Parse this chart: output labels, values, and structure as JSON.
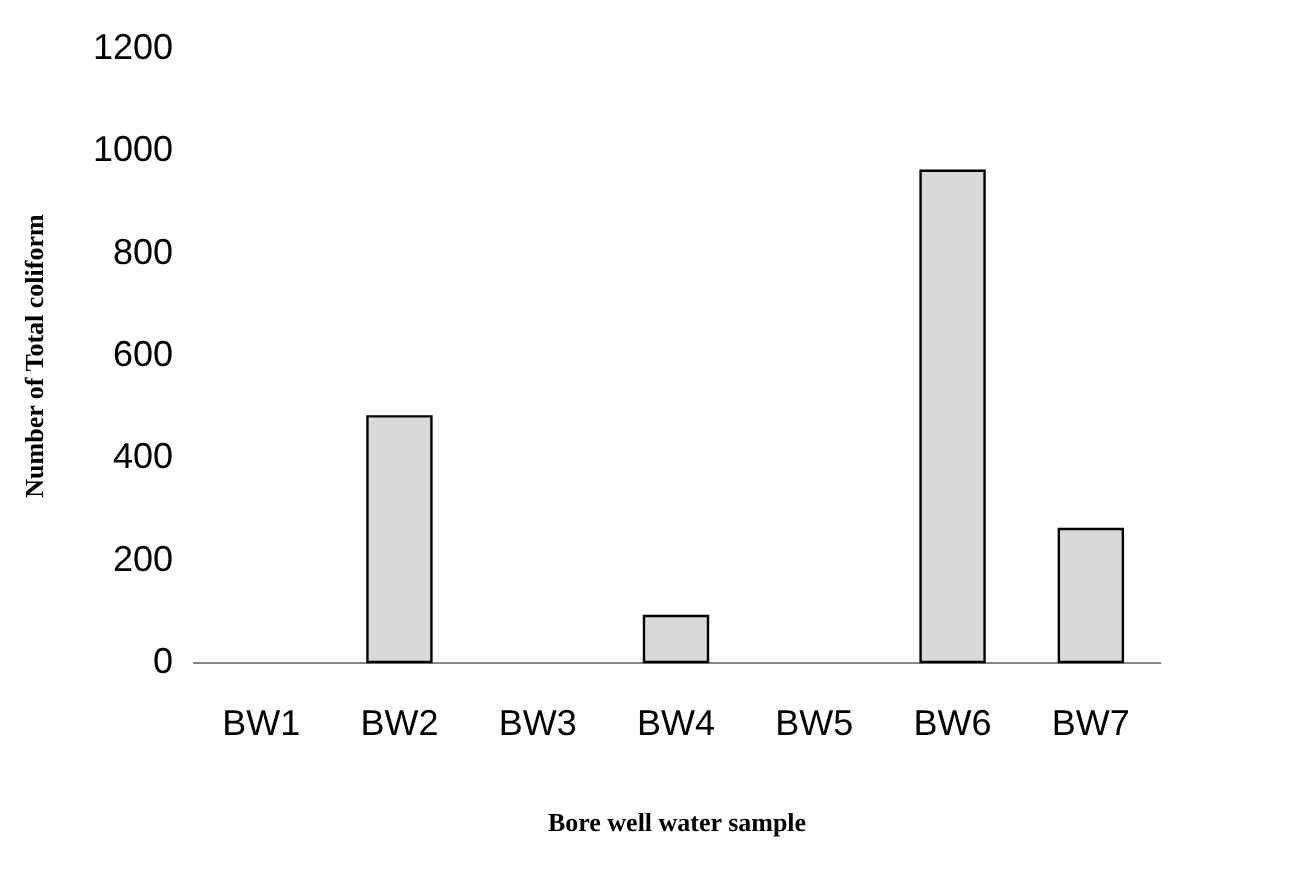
{
  "chart_data": {
    "type": "bar",
    "xlabel": "Bore well water sample",
    "ylabel": "Number of Total coliform",
    "categories": [
      "BW1",
      "BW2",
      "BW3",
      "BW4",
      "BW5",
      "BW6",
      "BW7"
    ],
    "values": [
      0,
      480,
      0,
      90,
      0,
      960,
      260
    ],
    "color": "#d9d9d9",
    "ylim": [
      0,
      1200
    ],
    "yticks": [
      0,
      200,
      400,
      600,
      800,
      1000,
      1200
    ],
    "grid": false
  }
}
